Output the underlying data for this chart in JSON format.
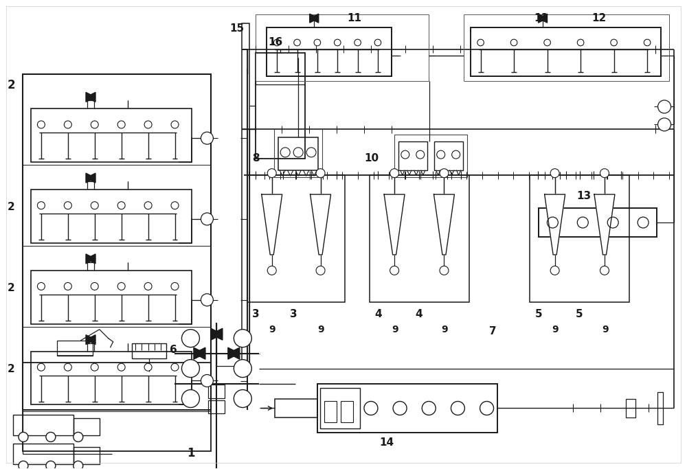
{
  "bg_color": "#ffffff",
  "line_color": "#1a1a1a",
  "fig_width": 10.0,
  "fig_height": 6.83,
  "dpi": 100
}
